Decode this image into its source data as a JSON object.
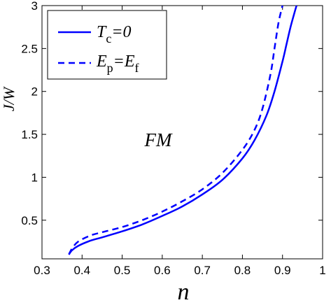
{
  "chart_data": {
    "type": "line",
    "title": "",
    "xlabel": "n",
    "ylabel": "J/W",
    "xlim": [
      0.3,
      1.0
    ],
    "ylim": [
      0.05,
      3.0
    ],
    "xticks": [
      0.3,
      0.4,
      0.5,
      0.6,
      0.7,
      0.8,
      0.9,
      1.0
    ],
    "xtick_labels": [
      "0.3",
      "0.4",
      "0.5",
      "0.6",
      "0.7",
      "0.8",
      "0.9",
      "1"
    ],
    "yticks": [
      0.5,
      1.0,
      1.5,
      2.0,
      2.5,
      3.0
    ],
    "ytick_labels": [
      "0.5",
      "1",
      "1.5",
      "2",
      "2.5",
      "3"
    ],
    "grid": false,
    "legend_position": "top-left",
    "legend": {
      "tc": {
        "main": "T",
        "sub": "c",
        "rest": "=0"
      },
      "ep": {
        "main": "E",
        "sub1": "p",
        "mid": "=E",
        "sub2": "f"
      }
    },
    "annotation": "FM",
    "series": [
      {
        "key": "tc",
        "style": "solid",
        "color": "#0000ff",
        "x": [
          0.367,
          0.375,
          0.39,
          0.42,
          0.45,
          0.5,
          0.55,
          0.6,
          0.65,
          0.7,
          0.75,
          0.8,
          0.83,
          0.86,
          0.88,
          0.9,
          0.91,
          0.92,
          0.93,
          0.935
        ],
        "y": [
          0.1,
          0.15,
          0.2,
          0.26,
          0.3,
          0.37,
          0.45,
          0.55,
          0.66,
          0.8,
          0.97,
          1.22,
          1.43,
          1.72,
          2.0,
          2.35,
          2.55,
          2.75,
          2.92,
          3.0
        ]
      },
      {
        "key": "ep",
        "style": "dashed",
        "color": "#0000ff",
        "x": [
          0.367,
          0.375,
          0.39,
          0.42,
          0.45,
          0.5,
          0.55,
          0.6,
          0.65,
          0.7,
          0.75,
          0.8,
          0.83,
          0.85,
          0.87,
          0.88,
          0.89,
          0.9
        ],
        "y": [
          0.1,
          0.17,
          0.25,
          0.32,
          0.36,
          0.42,
          0.5,
          0.6,
          0.72,
          0.86,
          1.05,
          1.32,
          1.55,
          1.8,
          2.2,
          2.5,
          2.8,
          3.0
        ]
      }
    ]
  }
}
